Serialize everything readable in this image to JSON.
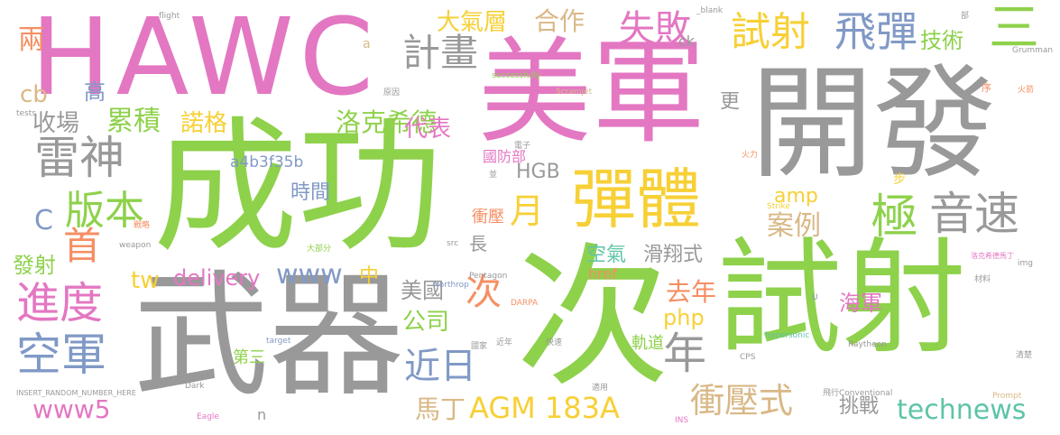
{
  "words": {
    "w_hawc": "HAWC",
    "w_meijun": "美軍",
    "w_kaifa": "開發",
    "w_chenggong": "成功",
    "w_wuqi": "武器",
    "w_ci": "次",
    "w_shishe_big": "試射",
    "w_dantiti": "彈體",
    "w_yinsu": "音速",
    "w_ji": "極",
    "w_feidan": "飛彈",
    "w_shishe_small": "試射",
    "w_san": "三",
    "w_jishu": "技術",
    "w_shibai": "失敗",
    "w_hezuo": "合作",
    "w_daqiceng": "大氣層",
    "w_jihua": "計畫",
    "w_liang": "兩",
    "w_cb": "cb",
    "w_gao": "高",
    "w_leishen": "雷神",
    "w_shouchang": "收場",
    "w_leiji": "累積",
    "w_nuoge": "諾格",
    "w_luokexide": "洛克希德",
    "w_daibiao": "代表",
    "w_banben": "版本",
    "w_c": "C",
    "w_shou": "首",
    "w_yue": "月",
    "w_a4b3": "a4b3f35b",
    "w_shijian": "時間",
    "w_hgb": "HGB",
    "w_guofangbu": "國防部",
    "w_anli": "案例",
    "w_amp": "amp",
    "w_geng": "更",
    "w_fashe": "發射",
    "w_jindu": "進度",
    "w_tw": "tw",
    "w_delivery": "delivery",
    "w_www": "www",
    "w_chongya": "衝壓",
    "w_kongqi": "空氣",
    "w_huaxiangshi": "滑翔式",
    "w_zhong": "中",
    "w_meiguo": "美國",
    "w_ci_small": "次",
    "w_chang": "長",
    "w_qunian": "去年",
    "w_haijun": "海軍",
    "w_php": "php",
    "w_gongsi": "公司",
    "w_kongjun": "空軍",
    "w_jinri": "近日",
    "w_nian": "年",
    "w_disan": "第三",
    "w_guidao": "軌道",
    "w_chongyashi": "衝壓式",
    "w_agm": "AGM 183A",
    "w_www5": "www5",
    "w_mading": "馬丁",
    "w_tiaozhan": "挑戰",
    "w_technews": "technews",
    "w_href": "href",
    "w_n": "n",
    "w_s_flight": "flight",
    "w_s_blank": "_blank",
    "w_s_grumman": "Grumman",
    "w_s_successfully": "successfully",
    "w_s_scramjet": "Scramjet",
    "w_s_hypersonic": "hypersonic",
    "w_s_darpa": "DARPA",
    "w_s_pentagon": "Pentagon",
    "w_s_northrop": "Northrop",
    "w_s_raytheon": "Raytheon",
    "w_s_conventional": "Conventional",
    "w_s_weapon": "weapon",
    "w_s_target": "target",
    "w_s_insert": "INSERT_RANDOM_NUMBER_HERE",
    "w_s_eagle": "Eagle",
    "w_s_dark": "Dark",
    "w_s_prompt": "Prompt",
    "w_s_tests": "tests",
    "w_s_src": "src",
    "w_s_img": "img",
    "w_s_strike": "Strike",
    "w_s_cps": "CPS",
    "w_s_ins": "INS",
    "w_s_u": "U",
    "w_s_a": "a",
    "w_s_ck": "ck",
    "w_s_step": "步",
    "w_s_xu": "序",
    "w_s_bu": "部",
    "w_s_huoli": "火力",
    "w_s_lockheed_tw": "洛克希德馬丁",
    "w_s_yuanyin": "原因",
    "w_s_dianzi": "電子",
    "w_s_bing": "並",
    "w_s_zhanlue": "戰略",
    "w_s_jinnian": "近年",
    "w_s_kuaisu": "快速",
    "w_s_feixing": "飛行",
    "w_s_cailiao": "材料",
    "w_s_qinglie": "清楚",
    "w_s_shiyong": "適用",
    "w_s_guojia": "國家",
    "w_s_huojian": "火箭",
    "w_s_dabufen": "大部分"
  },
  "palette": {
    "gray": "#999999",
    "pink": "#e377c2",
    "yellow": "#f7d036",
    "green": "#8ed14b",
    "blue": "#8099c6",
    "orange": "#f58f63",
    "teal": "#5ec4a8",
    "tan": "#d9b886"
  }
}
